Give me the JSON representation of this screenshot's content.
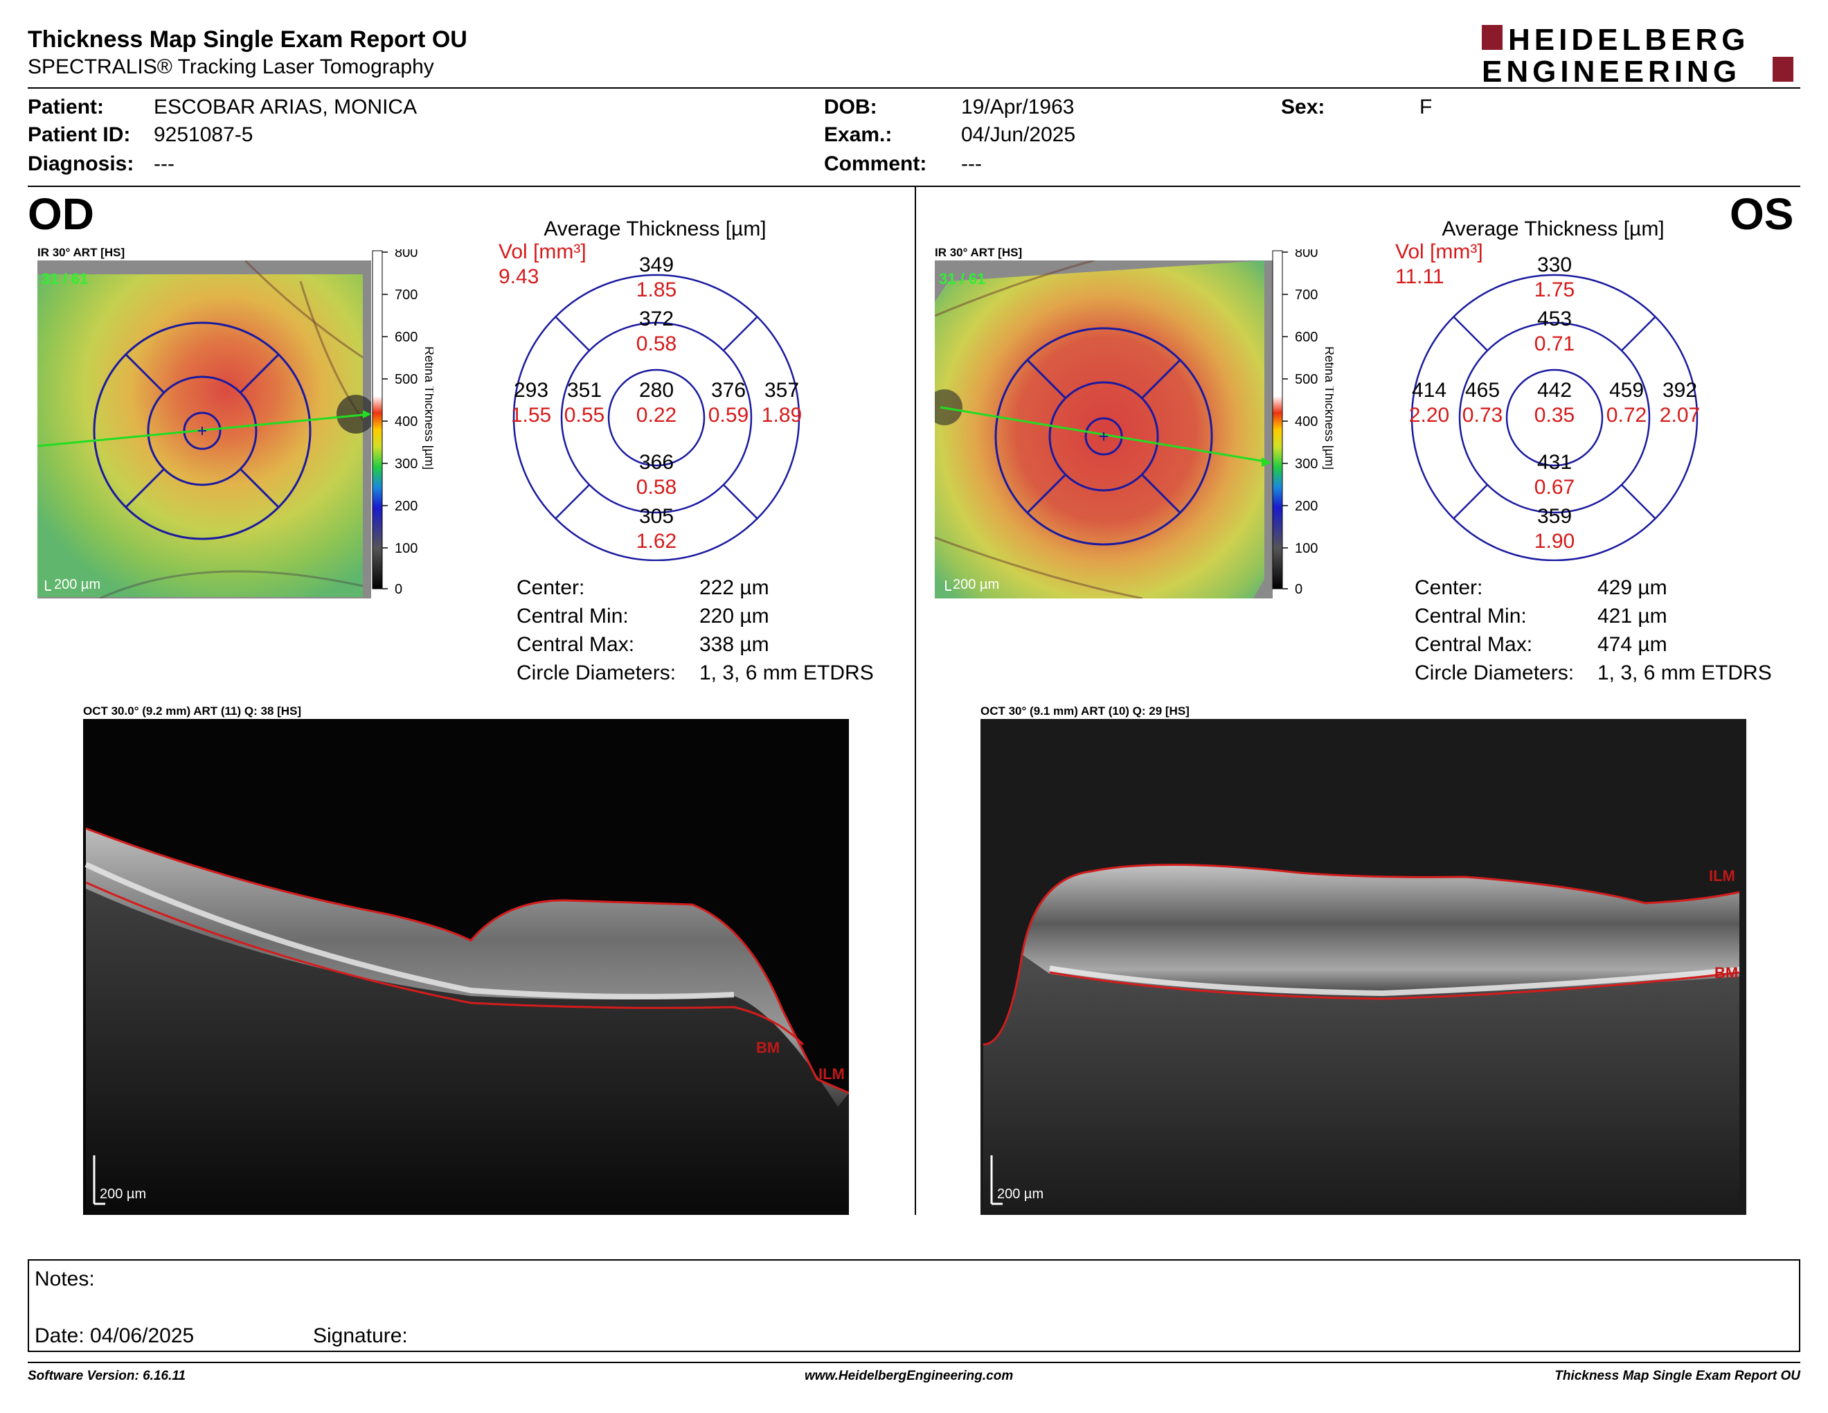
{
  "header": {
    "title": "Thickness Map Single Exam Report OU",
    "subtitle": "SPECTRALIS® Tracking Laser Tomography",
    "logo_line1": "HEIDELBERG",
    "logo_line2": "ENGINEERING",
    "logo_color": "#8b1a2b"
  },
  "patient": {
    "patient_label": "Patient:",
    "patient_value": "ESCOBAR ARIAS, MONICA",
    "id_label": "Patient ID:",
    "id_value": "9251087-5",
    "diagnosis_label": "Diagnosis:",
    "diagnosis_value": "---",
    "dob_label": "DOB:",
    "dob_value": "19/Apr/1963",
    "exam_label": "Exam.:",
    "exam_value": "04/Jun/2025",
    "comment_label": "Comment:",
    "comment_value": "---",
    "sex_label": "Sex:",
    "sex_value": "F"
  },
  "od": {
    "eye": "OD",
    "ir_label": "IR 30° ART [HS]",
    "frame": "31 / 61",
    "scale": "200 µm",
    "colorbar_ticks": [
      "800",
      "700",
      "600",
      "500",
      "400",
      "300",
      "200",
      "100",
      "0"
    ],
    "colorbar_title": "Retina Thickness [µm]",
    "avg_title": "Average Thickness [µm]",
    "vol_label": "Vol [mm³]",
    "vol_total": "9.43",
    "sectors": {
      "outer_top": {
        "t": "349",
        "v": "1.85"
      },
      "inner_top": {
        "t": "372",
        "v": "0.58"
      },
      "outer_left": {
        "t": "293",
        "v": "1.55"
      },
      "inner_left": {
        "t": "351",
        "v": "0.55"
      },
      "center": {
        "t": "280",
        "v": "0.22"
      },
      "inner_right": {
        "t": "376",
        "v": "0.59"
      },
      "outer_right": {
        "t": "357",
        "v": "1.89"
      },
      "inner_bottom": {
        "t": "366",
        "v": "0.58"
      },
      "outer_bottom": {
        "t": "305",
        "v": "1.62"
      }
    },
    "stats": [
      {
        "label": "Center:",
        "value": "222 µm"
      },
      {
        "label": "Central Min:",
        "value": "220 µm"
      },
      {
        "label": "Central Max:",
        "value": "338 µm"
      },
      {
        "label": "Circle Diameters:",
        "value": "1, 3, 6 mm ETDRS"
      }
    ],
    "oct_label": "OCT 30.0° (9.2 mm) ART (11) Q: 38 [HS]",
    "oct_scale": "200 µm",
    "ilm": "ILM",
    "bm": "BM"
  },
  "os": {
    "eye": "OS",
    "ir_label": "IR 30° ART [HS]",
    "frame": "31 / 61",
    "scale": "200 µm",
    "colorbar_ticks": [
      "800",
      "700",
      "600",
      "500",
      "400",
      "300",
      "200",
      "100",
      "0"
    ],
    "colorbar_title": "Retina Thickness [µm]",
    "avg_title": "Average Thickness [µm]",
    "vol_label": "Vol [mm³]",
    "vol_total": "11.11",
    "sectors": {
      "outer_top": {
        "t": "330",
        "v": "1.75"
      },
      "inner_top": {
        "t": "453",
        "v": "0.71"
      },
      "outer_left": {
        "t": "414",
        "v": "2.20"
      },
      "inner_left": {
        "t": "465",
        "v": "0.73"
      },
      "center": {
        "t": "442",
        "v": "0.35"
      },
      "inner_right": {
        "t": "459",
        "v": "0.72"
      },
      "outer_right": {
        "t": "392",
        "v": "2.07"
      },
      "inner_bottom": {
        "t": "431",
        "v": "0.67"
      },
      "outer_bottom": {
        "t": "359",
        "v": "1.90"
      }
    },
    "stats": [
      {
        "label": "Center:",
        "value": "429 µm"
      },
      {
        "label": "Central Min:",
        "value": "421 µm"
      },
      {
        "label": "Central Max:",
        "value": "474 µm"
      },
      {
        "label": "Circle Diameters:",
        "value": "1, 3, 6 mm ETDRS"
      }
    ],
    "oct_label": "OCT 30° (9.1 mm) ART (10) Q: 29 [HS]",
    "oct_scale": "200 µm",
    "ilm": "ILM",
    "bm": "BM"
  },
  "notes": {
    "notes_label": "Notes:",
    "date_label": "Date: 04/06/2025",
    "signature_label": "Signature:"
  },
  "footer": {
    "software": "Software Version: 6.16.11",
    "website": "www.HeidelbergEngineering.com",
    "report": "Thickness Map Single Exam Report OU"
  },
  "colors": {
    "thickness_text": "#000000",
    "volume_text": "#d61a1a",
    "grid_blue": "#1a1aa0",
    "ilm_red": "#d41c1c",
    "frame_green": "#33ee33"
  }
}
